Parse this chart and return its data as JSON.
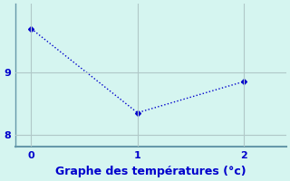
{
  "x": [
    0,
    1,
    2
  ],
  "y": [
    9.7,
    8.35,
    8.85
  ],
  "line_color": "#0000cc",
  "marker": "D",
  "marker_size": 3,
  "background_color": "#d5f5f0",
  "grid_color": "#b0c8c8",
  "axis_color": "#6699aa",
  "xlabel": "Graphe des températures (°c)",
  "xlabel_color": "#0000cc",
  "xlabel_fontsize": 9,
  "tick_color": "#0000cc",
  "tick_fontsize": 8,
  "xlim": [
    -0.15,
    2.4
  ],
  "ylim": [
    7.8,
    10.1
  ],
  "yticks": [
    8,
    9
  ],
  "xticks": [
    0,
    1,
    2
  ],
  "figsize": [
    3.2,
    2.0
  ],
  "dpi": 100
}
